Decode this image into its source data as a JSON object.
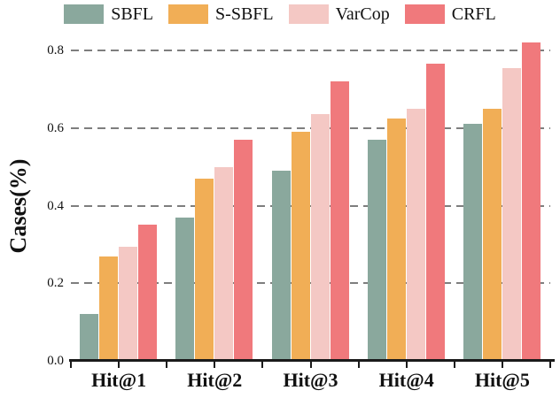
{
  "chart_data": {
    "type": "bar",
    "title": "",
    "xlabel": "",
    "ylabel": "Cases(%)",
    "categories": [
      "Hit@1",
      "Hit@2",
      "Hit@3",
      "Hit@4",
      "Hit@5"
    ],
    "series": [
      {
        "name": "SBFL",
        "color": "#8AA89D",
        "values": [
          0.12,
          0.37,
          0.49,
          0.57,
          0.61
        ]
      },
      {
        "name": "S-SBFL",
        "color": "#F1AE56",
        "values": [
          0.27,
          0.47,
          0.59,
          0.625,
          0.65
        ]
      },
      {
        "name": "VarCop",
        "color": "#F4C8C4",
        "values": [
          0.295,
          0.5,
          0.635,
          0.65,
          0.755
        ]
      },
      {
        "name": "CRFL",
        "color": "#F0797C",
        "values": [
          0.35,
          0.57,
          0.72,
          0.765,
          0.82
        ]
      }
    ],
    "y_ticks": [
      {
        "label": "0.0",
        "value": 0.0
      },
      {
        "label": "0.2",
        "value": 0.2
      },
      {
        "label": "0.4",
        "value": 0.4
      },
      {
        "label": "0.6",
        "value": 0.6
      },
      {
        "label": "0.8",
        "value": 0.8
      }
    ],
    "ylim": [
      0,
      0.83
    ],
    "grid": "horizontal dashed gridlines at 0.2 intervals, drawn behind bars",
    "legend_position": "top center",
    "axis_color": "#1a1a1a",
    "gridline_color": "#7e7e7e"
  }
}
